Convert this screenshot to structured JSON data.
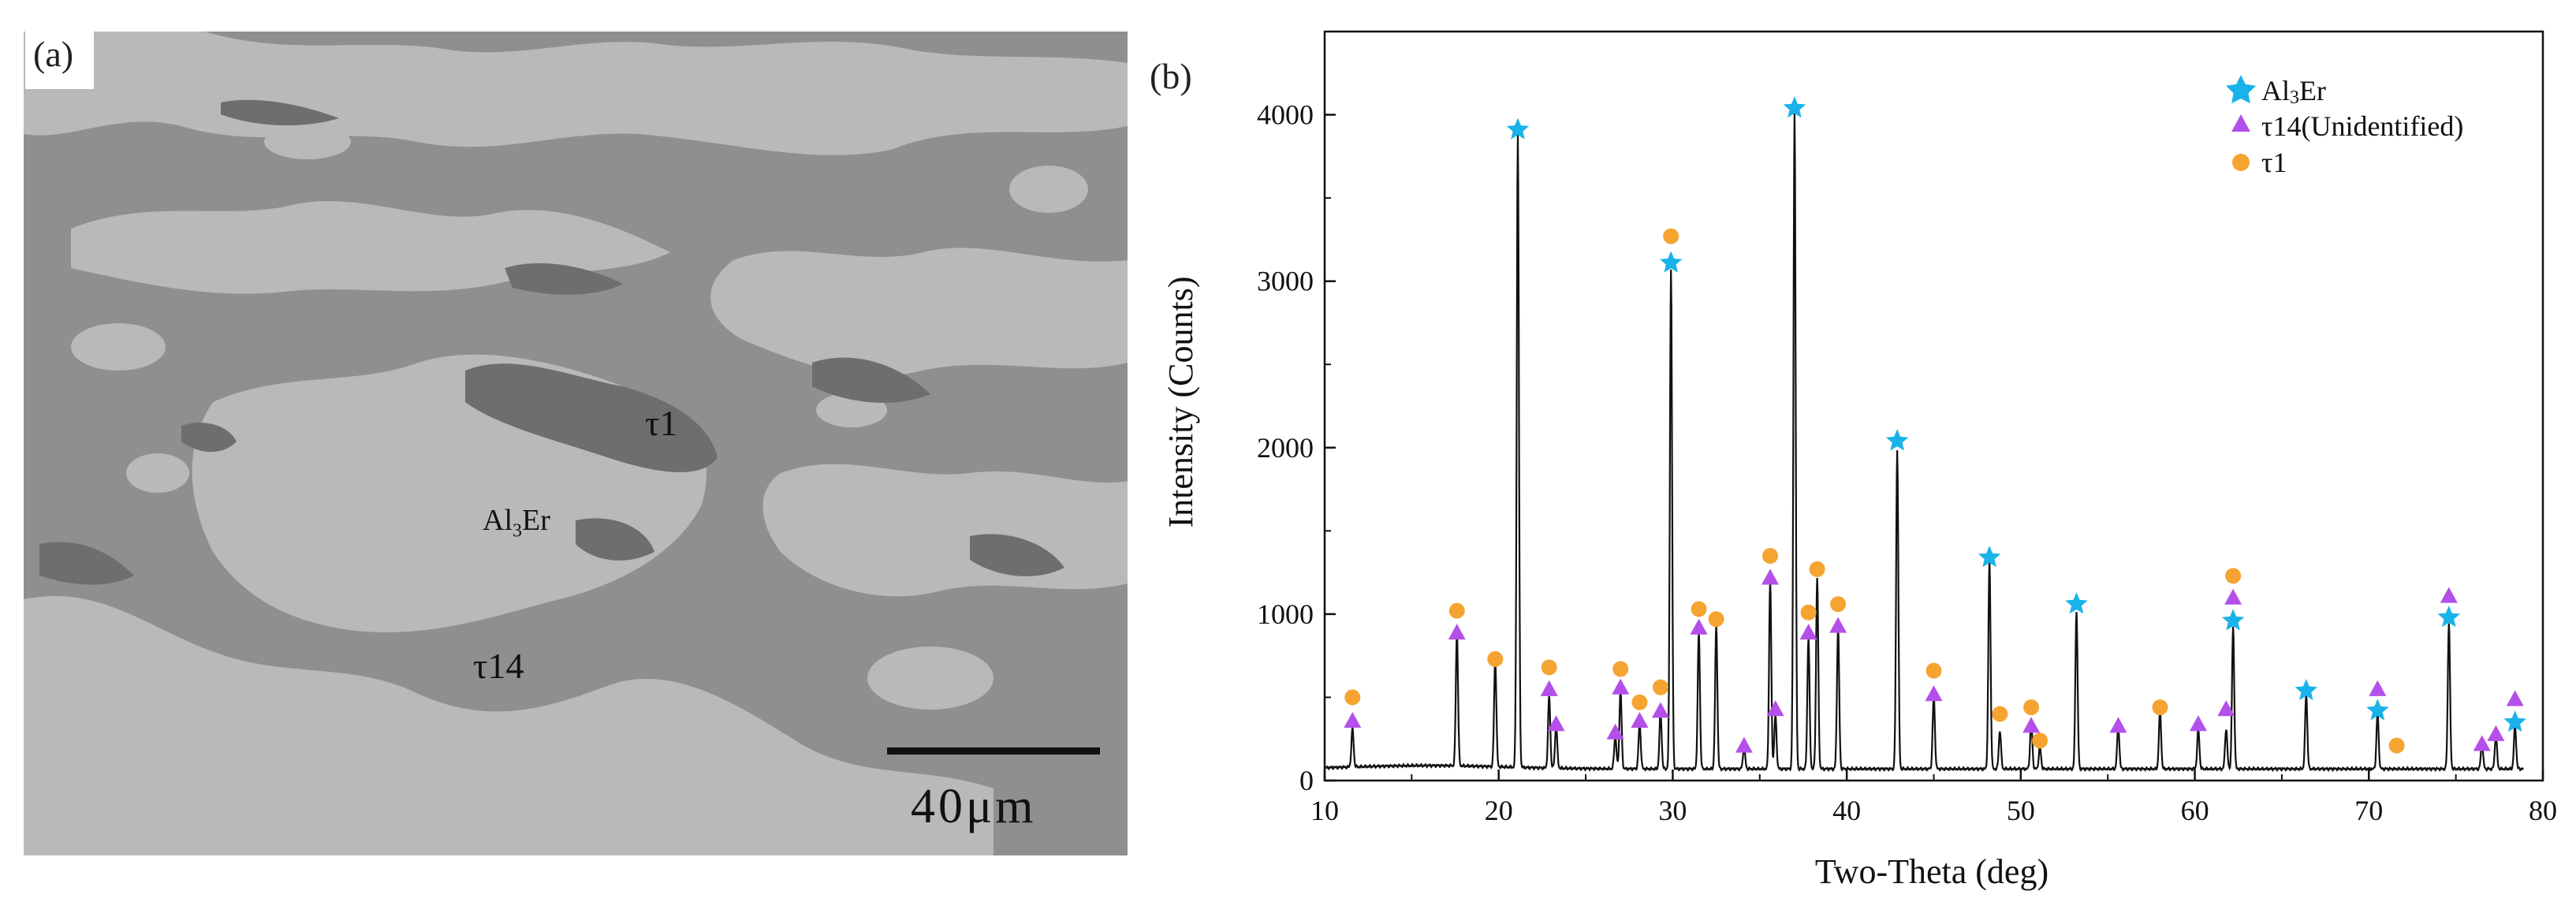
{
  "panels": {
    "a_label": "(a)",
    "b_label": "(b)"
  },
  "micrograph": {
    "phase_labels": [
      "τ1",
      "Al3Er",
      "τ14"
    ],
    "al3er_label": {
      "base": "Al",
      "sub": "3",
      "rest": "Er"
    },
    "scale_bar_text": "40μm",
    "colors": {
      "background": "#8f8f8f",
      "al3er": "#b9b9b9",
      "tau1": "#6e6e6e",
      "tau14": "#8f8f8f"
    }
  },
  "chart_data": {
    "type": "line",
    "xlabel": "Two-Theta (deg)",
    "ylabel": "Intensity (Counts)",
    "xlim": [
      10,
      80
    ],
    "ylim": [
      0,
      4500
    ],
    "xticks": [
      10,
      20,
      30,
      40,
      50,
      60,
      70,
      80
    ],
    "yticks": [
      0,
      1000,
      2000,
      3000,
      4000
    ],
    "grid": false,
    "legend_position": "top-right",
    "background_level": 70,
    "peaks": [
      [
        11.6,
        230
      ],
      [
        17.6,
        800
      ],
      [
        19.8,
        640
      ],
      [
        21.1,
        3800
      ],
      [
        22.9,
        430
      ],
      [
        23.3,
        250
      ],
      [
        26.7,
        200
      ],
      [
        27.0,
        470
      ],
      [
        28.1,
        270
      ],
      [
        29.3,
        340
      ],
      [
        29.9,
        3000
      ],
      [
        31.5,
        820
      ],
      [
        32.5,
        860
      ],
      [
        34.1,
        130
      ],
      [
        35.6,
        1130
      ],
      [
        35.9,
        320
      ],
      [
        37.0,
        3950
      ],
      [
        37.8,
        790
      ],
      [
        38.3,
        1150
      ],
      [
        39.5,
        850
      ],
      [
        42.9,
        1920
      ],
      [
        45.0,
        430
      ],
      [
        48.2,
        1250
      ],
      [
        48.8,
        230
      ],
      [
        50.6,
        280
      ],
      [
        51.1,
        130
      ],
      [
        53.2,
        950
      ],
      [
        55.6,
        250
      ],
      [
        58.0,
        350
      ],
      [
        60.2,
        240
      ],
      [
        61.8,
        240
      ],
      [
        62.2,
        850
      ],
      [
        66.4,
        450
      ],
      [
        70.5,
        330
      ],
      [
        74.6,
        880
      ],
      [
        76.5,
        150
      ],
      [
        77.3,
        200
      ],
      [
        78.4,
        260
      ]
    ],
    "series": [
      {
        "name": "Al3Er",
        "marker": "star",
        "color": "#1ab2ea",
        "points": [
          [
            21.1,
            3910
          ],
          [
            29.9,
            3110
          ],
          [
            37.0,
            4040
          ],
          [
            42.9,
            2040
          ],
          [
            48.2,
            1340
          ],
          [
            53.2,
            1060
          ],
          [
            62.2,
            960
          ],
          [
            66.4,
            540
          ],
          [
            70.5,
            420
          ],
          [
            74.6,
            980
          ],
          [
            78.4,
            350
          ]
        ]
      },
      {
        "name": "τ14(Unidentified)",
        "marker": "triangle",
        "color": "#b44fea",
        "points": [
          [
            11.6,
            360
          ],
          [
            17.6,
            890
          ],
          [
            22.9,
            550
          ],
          [
            23.3,
            340
          ],
          [
            26.7,
            290
          ],
          [
            27.0,
            560
          ],
          [
            28.1,
            360
          ],
          [
            29.3,
            420
          ],
          [
            31.5,
            920
          ],
          [
            34.1,
            210
          ],
          [
            35.6,
            1220
          ],
          [
            35.9,
            430
          ],
          [
            37.8,
            890
          ],
          [
            39.5,
            930
          ],
          [
            45.0,
            520
          ],
          [
            50.6,
            330
          ],
          [
            55.6,
            330
          ],
          [
            60.2,
            340
          ],
          [
            61.8,
            430
          ],
          [
            62.2,
            1100
          ],
          [
            70.5,
            550
          ],
          [
            74.6,
            1110
          ],
          [
            76.5,
            220
          ],
          [
            77.3,
            280
          ],
          [
            78.4,
            490
          ]
        ]
      },
      {
        "name": "τ1",
        "marker": "circle",
        "color": "#f5a431",
        "points": [
          [
            11.6,
            500
          ],
          [
            17.6,
            1020
          ],
          [
            19.8,
            730
          ],
          [
            22.9,
            680
          ],
          [
            27.0,
            670
          ],
          [
            28.1,
            470
          ],
          [
            29.3,
            560
          ],
          [
            29.9,
            3270
          ],
          [
            31.5,
            1030
          ],
          [
            32.5,
            970
          ],
          [
            35.6,
            1350
          ],
          [
            37.8,
            1010
          ],
          [
            38.3,
            1270
          ],
          [
            39.5,
            1060
          ],
          [
            45.0,
            660
          ],
          [
            48.8,
            400
          ],
          [
            50.6,
            440
          ],
          [
            51.1,
            240
          ],
          [
            58.0,
            440
          ],
          [
            62.2,
            1230
          ],
          [
            71.6,
            210
          ]
        ]
      }
    ],
    "legend": {
      "al3er": {
        "base": "Al",
        "sub": "3",
        "rest": "Er"
      },
      "tau14": "τ14(Unidentified)",
      "tau1": "τ1"
    }
  }
}
